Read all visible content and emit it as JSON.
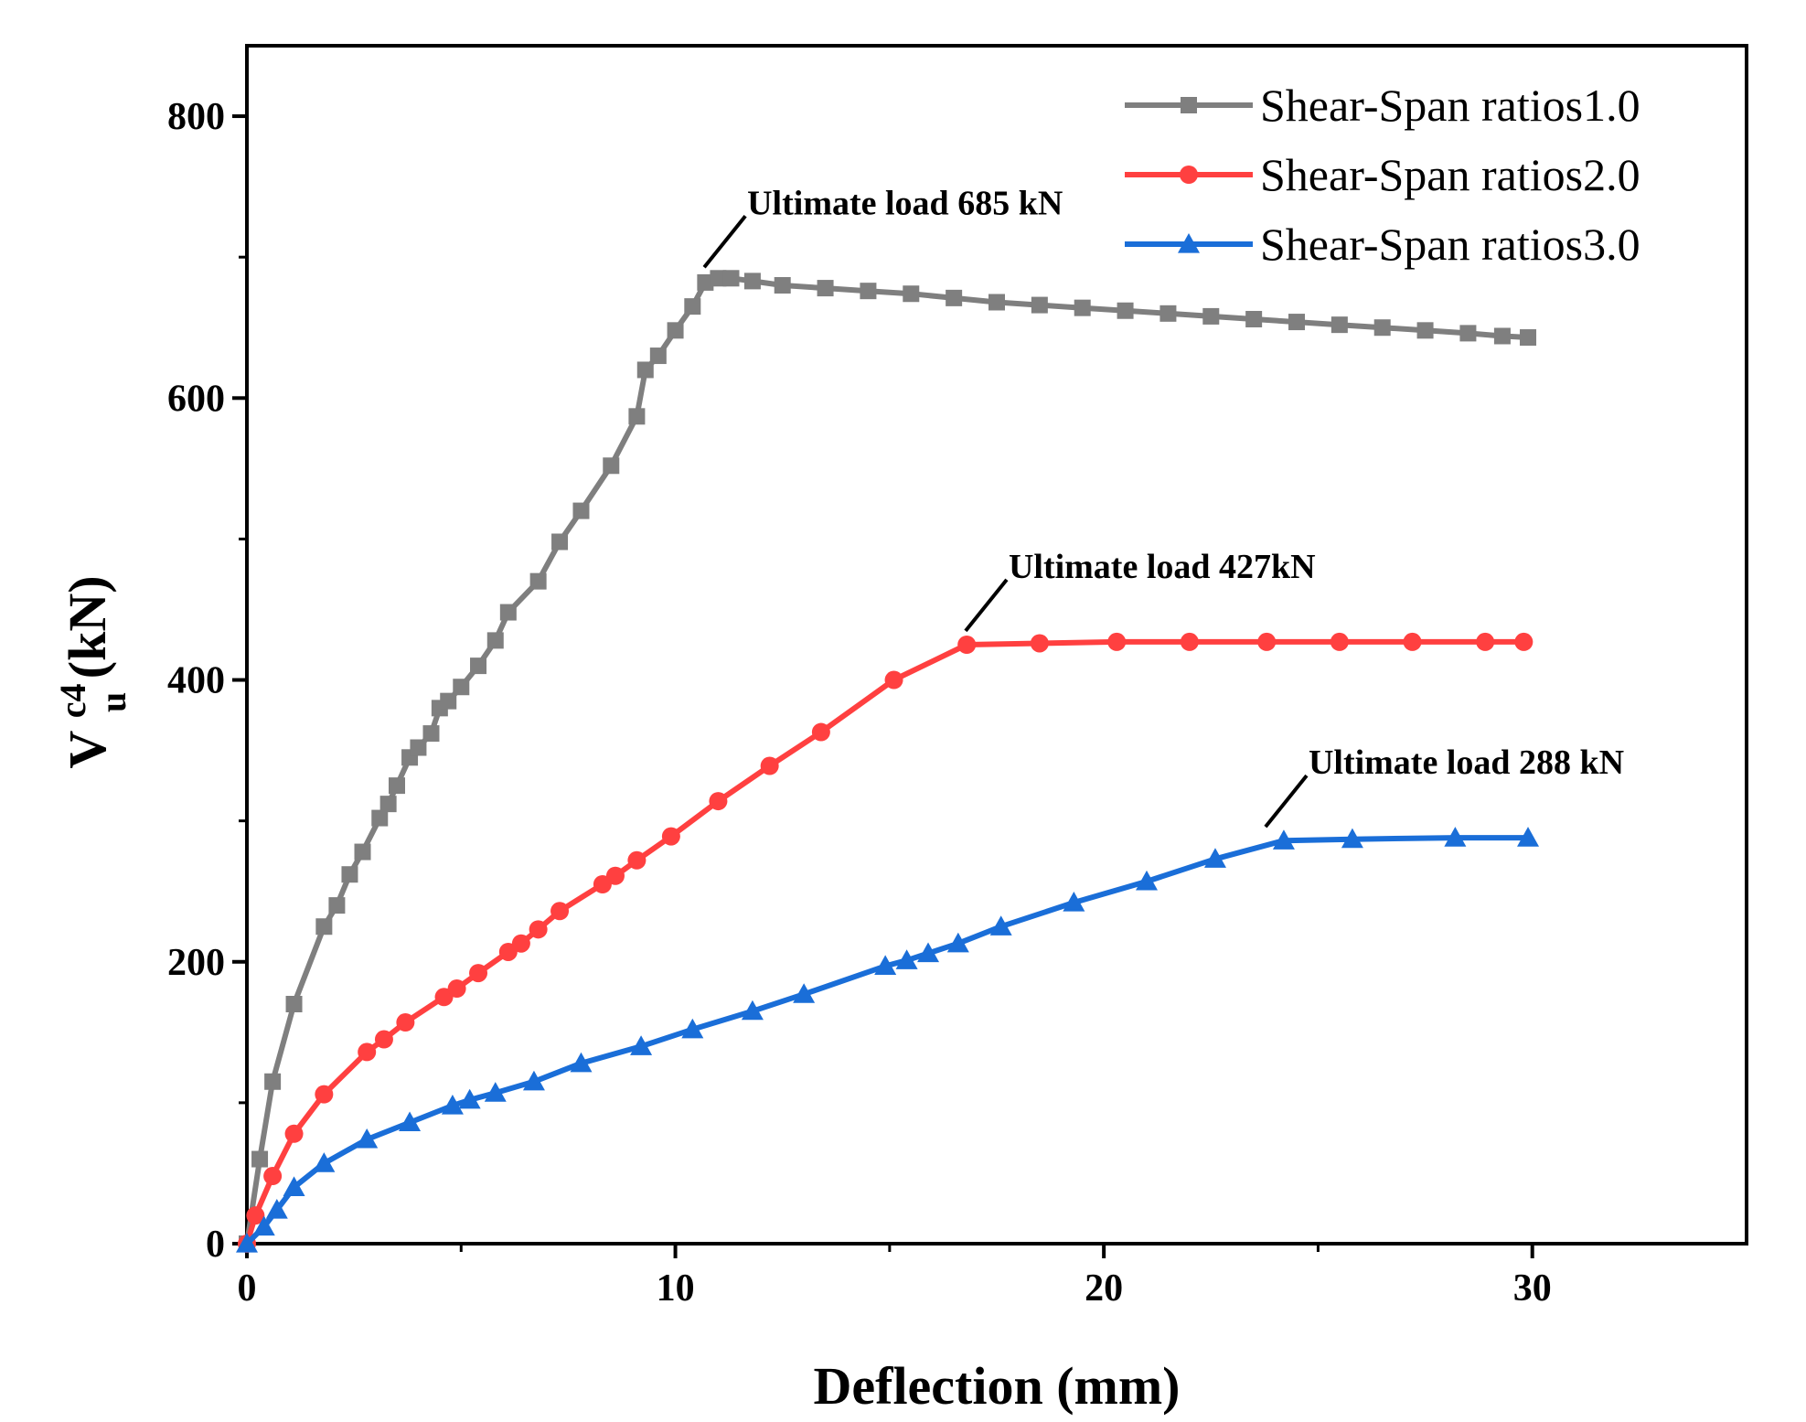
{
  "chart_data": {
    "type": "line",
    "title": "",
    "xlabel": "Deflection (mm)",
    "ylabel": {
      "main": "V",
      "sup": "c4",
      "sub": "u",
      "unit": "(kN)"
    },
    "xlim": [
      0,
      35
    ],
    "ylim": [
      0,
      850
    ],
    "xticks": [
      0,
      10,
      20,
      30
    ],
    "yticks": [
      0,
      200,
      400,
      600,
      800
    ],
    "grid": false,
    "legend_position": "top-right",
    "series": [
      {
        "name": "Shear-Span ratios1.0",
        "color": "#7f7f7f",
        "marker": "square",
        "x": [
          0,
          0.3,
          0.6,
          1.1,
          1.8,
          2.1,
          2.4,
          2.7,
          3.1,
          3.3,
          3.5,
          3.8,
          4.0,
          4.3,
          4.5,
          4.7,
          5.0,
          5.4,
          5.8,
          6.1,
          6.8,
          7.3,
          7.8,
          8.5,
          9.1,
          9.3,
          9.6,
          10.0,
          10.4,
          10.7,
          11.0,
          11.3,
          11.8,
          12.5,
          13.5,
          14.5,
          15.5,
          16.5,
          17.5,
          18.5,
          19.5,
          20.5,
          21.5,
          22.5,
          23.5,
          24.5,
          25.5,
          26.5,
          27.5,
          28.5,
          29.3,
          29.9
        ],
        "y": [
          0,
          60,
          115,
          170,
          225,
          240,
          262,
          278,
          302,
          312,
          325,
          345,
          352,
          362,
          380,
          385,
          395,
          410,
          428,
          448,
          470,
          498,
          520,
          552,
          587,
          620,
          630,
          648,
          665,
          682,
          685,
          685,
          683,
          680,
          678,
          676,
          674,
          671,
          668,
          666,
          664,
          662,
          660,
          658,
          656,
          654,
          652,
          650,
          648,
          646,
          644,
          643
        ]
      },
      {
        "name": "Shear-Span ratios2.0",
        "color": "#ff4040",
        "marker": "circle",
        "x": [
          0,
          0.2,
          0.6,
          1.1,
          1.8,
          2.8,
          3.2,
          3.7,
          4.6,
          4.9,
          5.4,
          6.1,
          6.4,
          6.8,
          7.3,
          8.3,
          8.6,
          9.1,
          9.9,
          11.0,
          12.2,
          13.4,
          15.1,
          16.8,
          18.5,
          20.3,
          22.0,
          23.8,
          25.5,
          27.2,
          28.9,
          29.8
        ],
        "y": [
          0,
          20,
          48,
          78,
          106,
          136,
          145,
          157,
          175,
          181,
          192,
          207,
          213,
          223,
          236,
          255,
          261,
          272,
          289,
          314,
          339,
          363,
          400,
          425,
          426,
          427,
          427,
          427,
          427,
          427,
          427,
          427
        ]
      },
      {
        "name": "Shear-Span ratios3.0",
        "color": "#1a6ed8",
        "marker": "triangle",
        "x": [
          0,
          0.4,
          0.7,
          1.1,
          1.8,
          2.8,
          3.8,
          4.8,
          5.2,
          5.8,
          6.7,
          7.8,
          9.2,
          10.4,
          11.8,
          13.0,
          14.9,
          15.4,
          15.9,
          16.6,
          17.6,
          19.3,
          21.0,
          22.6,
          24.2,
          25.8,
          28.2,
          29.9
        ],
        "y": [
          0,
          12,
          24,
          40,
          57,
          74,
          86,
          98,
          102,
          107,
          115,
          128,
          140,
          152,
          165,
          177,
          197,
          201,
          206,
          213,
          225,
          242,
          257,
          273,
          286,
          287,
          288,
          288
        ]
      }
    ],
    "annotations": [
      {
        "text": "Ultimate load 685 kN",
        "x": 11.1,
        "y": 685,
        "series": 0
      },
      {
        "text": "Ultimate load 427kN",
        "x": 17.2,
        "y": 427,
        "series": 1
      },
      {
        "text": "Ultimate load 288 kN",
        "x": 24.2,
        "y": 288,
        "series": 2
      }
    ]
  }
}
